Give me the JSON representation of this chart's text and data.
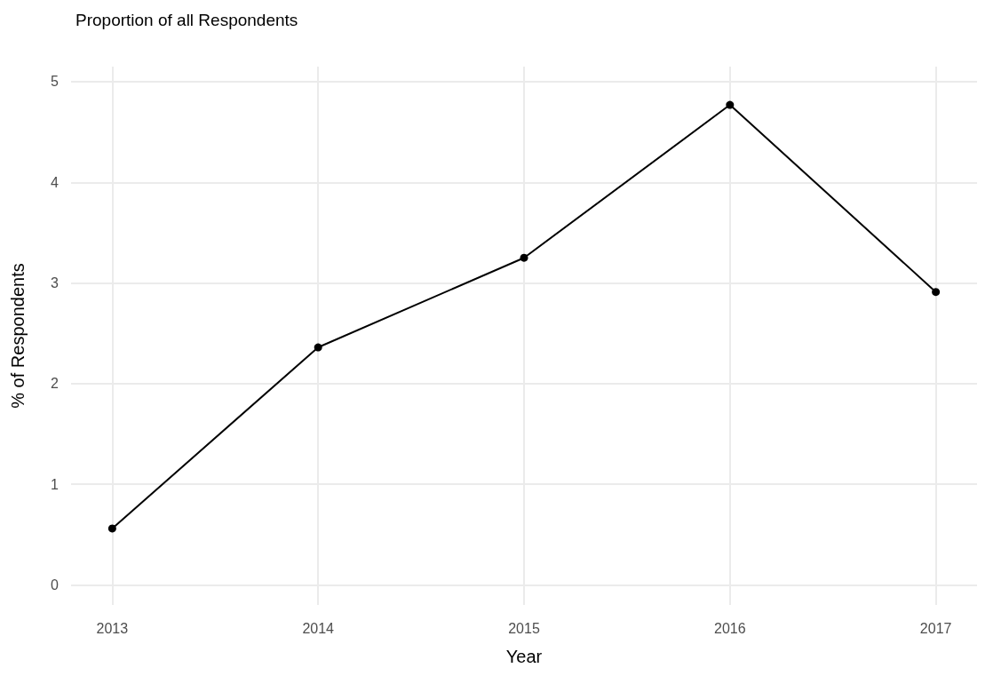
{
  "chart_data": {
    "type": "line",
    "title": "Proportion of all Respondents",
    "xlabel": "Year",
    "ylabel": "% of Respondents",
    "x": [
      2013,
      2014,
      2015,
      2016,
      2017
    ],
    "series": [
      {
        "color": "#000000",
        "values": [
          0.56,
          2.36,
          3.25,
          4.77,
          2.91
        ]
      }
    ],
    "xlim": [
      2012.8,
      2017.2
    ],
    "xticks": [
      2013,
      2014,
      2015,
      2016,
      2017
    ],
    "ylim": [
      -0.2,
      5.15
    ],
    "yticks": [
      0,
      1,
      2,
      3,
      4,
      5
    ],
    "grid": true,
    "marker": "circle",
    "line_style": "solid"
  }
}
